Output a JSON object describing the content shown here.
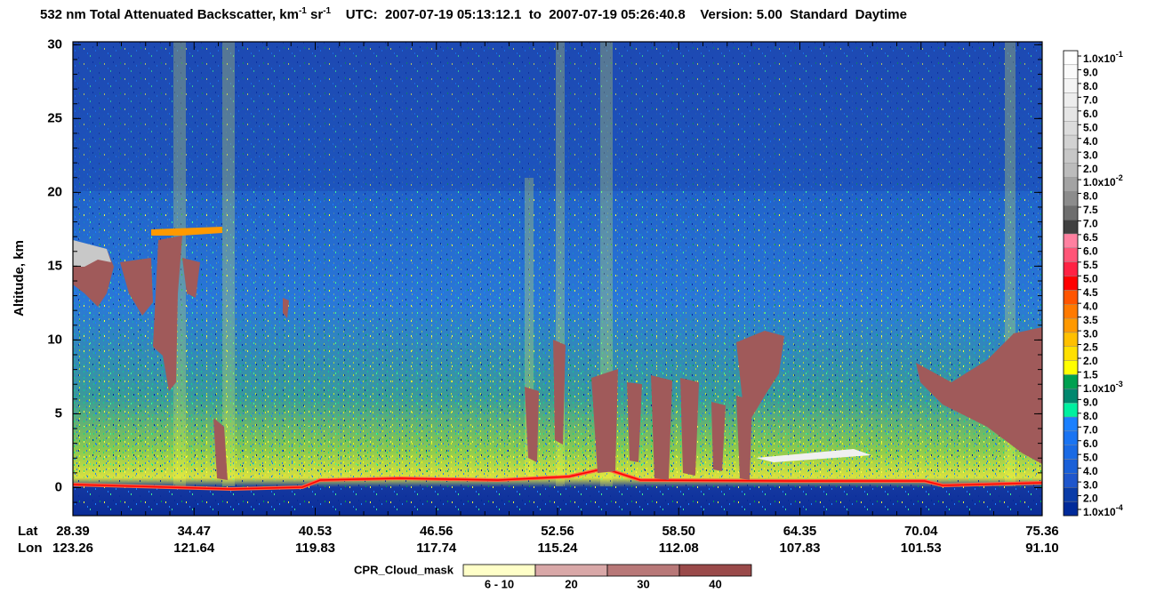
{
  "chart_data": {
    "type": "curtain",
    "title": {
      "main": "532 nm Total Attenuated Backscatter, km",
      "sup1": "-1",
      "unit2": " sr",
      "sup2": "-1",
      "utc": "UTC:  2007-07-19 05:13:12.1  to  2007-07-19 05:26:40.8",
      "version": "Version: 5.00",
      "mode": "Standard",
      "daytime": "Daytime"
    },
    "ylabel": "Altitude, km",
    "ylim": [
      -1.9,
      30.2
    ],
    "yticks": [
      0,
      5,
      10,
      15,
      20,
      25,
      30
    ],
    "x_rows": [
      {
        "label": "Lat",
        "categories": [
          "28.39",
          "34.47",
          "40.53",
          "46.56",
          "52.56",
          "58.50",
          "64.35",
          "70.04",
          "75.36"
        ]
      },
      {
        "label": "Lon",
        "categories": [
          "123.26",
          "121.64",
          "119.83",
          "117.74",
          "115.24",
          "112.08",
          "107.83",
          "101.53",
          "91.10"
        ]
      }
    ],
    "colorbar": {
      "labels": [
        {
          "base": "1.0x10",
          "exp": "-1"
        },
        "9.0",
        "8.0",
        "7.0",
        "6.0",
        "5.0",
        "4.0",
        "3.0",
        "2.0",
        {
          "base": "1.0x10",
          "exp": "-2"
        },
        "8.0",
        "7.5",
        "7.0",
        "6.5",
        "6.0",
        "5.5",
        "5.0",
        "4.5",
        "4.0",
        "3.5",
        "3.0",
        "2.5",
        "2.0",
        "1.5",
        {
          "base": "1.0x10",
          "exp": "-3"
        },
        "9.0",
        "8.0",
        "7.0",
        "6.0",
        "5.0",
        "4.0",
        "3.0",
        "2.0",
        {
          "base": "1.0x10",
          "exp": "-4"
        }
      ],
      "colors": [
        "#ffffff",
        "#fafafa",
        "#f4f4f4",
        "#ededed",
        "#e5e5e5",
        "#dcdcdc",
        "#d2d2d2",
        "#c7c7c7",
        "#bcbcbc",
        "#a3a3a3",
        "#8c8c8c",
        "#6e6e6e",
        "#404040",
        "#ff80a0",
        "#ff5577",
        "#ff2244",
        "#ff0000",
        "#ff5500",
        "#ff7a00",
        "#ff9900",
        "#ffc000",
        "#ffe000",
        "#ffff00",
        "#00a050",
        "#00876e",
        "#00f0a0",
        "#1a80ff",
        "#1a74f2",
        "#1a6ae4",
        "#1a60d8",
        "#1f56cc",
        "#0a3ca8",
        "#002a9a"
      ]
    },
    "cpr_legend": {
      "title": "CPR_Cloud_mask",
      "labels": [
        "6 - 10",
        "20",
        "30",
        "40"
      ],
      "colors": [
        "#ffffc8",
        "#d9a8a8",
        "#b87878",
        "#9a4a4a"
      ]
    }
  }
}
